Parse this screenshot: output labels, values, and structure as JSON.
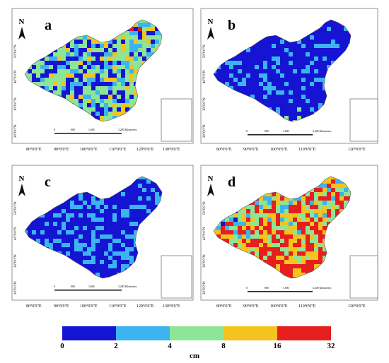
{
  "panels": [
    {
      "letter": "a",
      "lat_labels": [
        "50°0'0\"N",
        "40°0'0\"N",
        "30°0'0\"N",
        "20°0'0\"N"
      ],
      "lon_labels": [
        "80°0'0\"E",
        "90°0'0\"E",
        "100°0'0\"E",
        "110°0'0\"E",
        "120°0'0\"E",
        "130°0'0\"E"
      ],
      "scale_labels": [
        "0",
        "800",
        "1,600",
        "3,200 Kilometers"
      ]
    },
    {
      "letter": "b",
      "lat_labels": [
        "50°0'0\"N",
        "40°0'0\"N",
        "30°0'0\"N",
        "20°0'0\"N"
      ],
      "lon_labels": [
        "80°0'0\"E",
        "90°0'0\"E",
        "100°0'0\"E",
        "110°0'0\"E",
        "120°0'0\"E"
      ],
      "scale_labels": [
        "0",
        "800",
        "1,600",
        "3,200 Kilometers"
      ]
    },
    {
      "letter": "c",
      "lat_labels": [
        "50°0'0\"N",
        "40°0'0\"N",
        "30°0'0\"N",
        "20°0'0\"N"
      ],
      "lon_labels": [
        "80°0'0\"E",
        "90°0'0\"E",
        "100°0'0\"E",
        "110°0'0\"E",
        "120°0'0\"E",
        "130°0'0\"E"
      ],
      "scale_labels": [
        "0",
        "800",
        "1,600",
        "3,200 Kilometers"
      ]
    },
    {
      "letter": "d",
      "lat_labels": [
        "50°0'0\"N",
        "40°0'0\"N",
        "30°0'0\"N",
        "20°0'0\"N"
      ],
      "lon_labels": [
        "80°0'0\"E",
        "90°0'0\"E",
        "100°0'0\"E",
        "110°0'0\"E",
        "120°0'0\"E"
      ],
      "scale_labels": [
        "0",
        "800",
        "1,600",
        "3,200 Kilometers"
      ]
    }
  ],
  "north_label": "N",
  "legend": {
    "unit": "cm",
    "ticks": [
      "0",
      "2",
      "4",
      "8",
      "16",
      "32"
    ],
    "colors": [
      "#1414d2",
      "#3cb4f0",
      "#8ce696",
      "#f5c31e",
      "#e61e1e"
    ]
  }
}
